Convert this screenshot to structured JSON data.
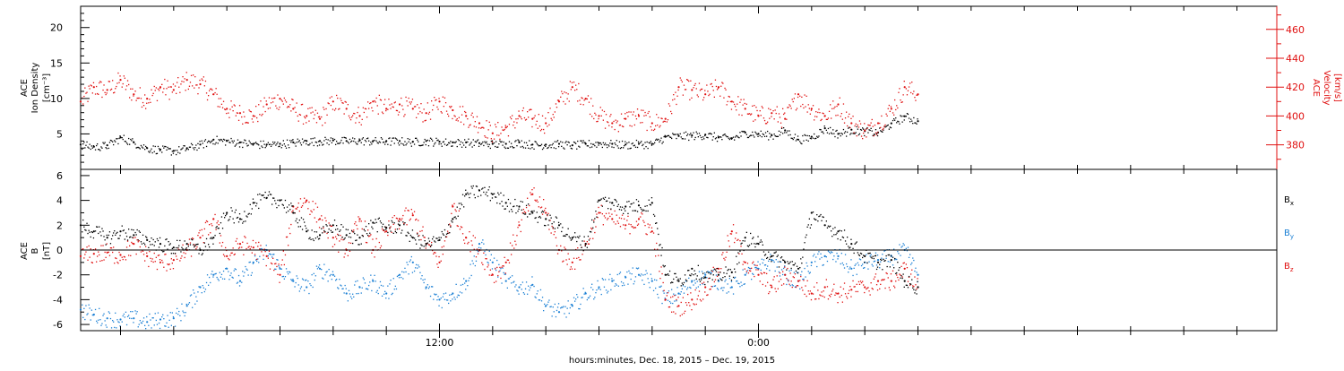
{
  "chart_data": [
    {
      "type": "scatter",
      "panel": "top",
      "ylabel_left": [
        "ACE",
        "Ion Density",
        "[cm⁻³]"
      ],
      "ylabel_right": [
        "ACE",
        "Velocity",
        "[km/s]"
      ],
      "ylim_left": [
        0,
        23
      ],
      "yticks_left": [
        5,
        10,
        15,
        20
      ],
      "ylim_right": [
        363,
        476
      ],
      "yticks_right": [
        380,
        400,
        420,
        440,
        460
      ],
      "colors": {
        "density": "#000000",
        "velocity": "#e01010"
      },
      "series": [
        {
          "axis": "left",
          "x_hours": [
            -1.5,
            -1,
            -0.5,
            0,
            0.5,
            1,
            1.5,
            2,
            2.5,
            3,
            3.5,
            4,
            4.5,
            5,
            5.5,
            6,
            6.5,
            7,
            7.5,
            8,
            8.5,
            9,
            9.5,
            10,
            10.5,
            11,
            11.5,
            12,
            12.5,
            13,
            13.5,
            14,
            14.5,
            15,
            15.5,
            16,
            16.5,
            17,
            17.5,
            18,
            18.5,
            19,
            19.5,
            20,
            20.5,
            21,
            21.5,
            22,
            22.5,
            23,
            23.5,
            24,
            24.5,
            25,
            25.5,
            26,
            26.5,
            27,
            27.5,
            28,
            28.5,
            29,
            29.5,
            30
          ],
          "values": [
            3.5,
            3.2,
            3.4,
            4.5,
            3.8,
            3.0,
            2.8,
            2.6,
            3.0,
            3.5,
            4.2,
            4.0,
            3.8,
            3.6,
            3.5,
            3.6,
            3.8,
            4.0,
            4.0,
            4.1,
            4.0,
            4.1,
            4.0,
            4.0,
            4.0,
            3.9,
            4.0,
            3.9,
            3.8,
            3.8,
            3.7,
            3.6,
            3.6,
            3.8,
            3.5,
            3.5,
            3.6,
            3.4,
            3.6,
            3.7,
            3.6,
            3.5,
            3.6,
            3.6,
            4.6,
            4.7,
            4.8,
            4.9,
            4.5,
            4.4,
            5.2,
            5.0,
            4.8,
            5.5,
            4.2,
            4.6,
            5.8,
            5.0,
            5.6,
            5.4,
            5.2,
            6.5,
            7.5,
            6.8
          ]
        },
        {
          "axis": "right",
          "x_hours": [
            -1.5,
            -1,
            -0.5,
            0,
            0.5,
            1,
            1.5,
            2,
            2.5,
            3,
            3.5,
            4,
            4.5,
            5,
            5.5,
            6,
            6.5,
            7,
            7.5,
            8,
            8.5,
            9,
            9.5,
            10,
            10.5,
            11,
            11.5,
            12,
            12.5,
            13,
            13.5,
            14,
            14.5,
            15,
            15.5,
            16,
            16.5,
            17,
            17.5,
            18,
            18.5,
            19,
            19.5,
            20,
            20.5,
            21,
            21.5,
            22,
            22.5,
            23,
            23.5,
            24,
            24.5,
            25,
            25.5,
            26,
            26.5,
            27,
            27.5,
            28,
            28.5,
            29,
            29.5,
            30
          ],
          "values": [
            410,
            420,
            418,
            425,
            415,
            412,
            420,
            418,
            425,
            422,
            415,
            405,
            402,
            400,
            408,
            412,
            405,
            400,
            398,
            410,
            405,
            400,
            410,
            405,
            408,
            405,
            402,
            410,
            404,
            400,
            395,
            388,
            392,
            400,
            398,
            395,
            410,
            420,
            412,
            400,
            395,
            398,
            400,
            395,
            398,
            420,
            418,
            415,
            420,
            410,
            405,
            400,
            402,
            398,
            415,
            405,
            400,
            408,
            395,
            390,
            395,
            405,
            420,
            415
          ]
        }
      ]
    },
    {
      "type": "scatter",
      "panel": "bottom",
      "ylabel_left": [
        "ACE",
        "B",
        "[nT]"
      ],
      "ylim": [
        -6.5,
        6.5
      ],
      "yticks": [
        -6,
        -4,
        -2,
        0,
        2,
        4,
        6
      ],
      "colors": {
        "bx": "#000000",
        "by": "#1a7fd4",
        "bz": "#e01010"
      },
      "legend": [
        "Bx",
        "By",
        "Bz"
      ],
      "series": [
        {
          "name": "Bx",
          "x_hours": [
            -1.5,
            -1,
            -0.5,
            0,
            0.5,
            1,
            1.5,
            2,
            2.5,
            3,
            3.5,
            4,
            4.5,
            5,
            5.5,
            6,
            6.5,
            7,
            7.5,
            8,
            8.5,
            9,
            9.5,
            10,
            10.5,
            11,
            11.5,
            12,
            12.5,
            13,
            13.5,
            14,
            14.5,
            15,
            15.5,
            16,
            16.5,
            17,
            17.5,
            18,
            18.5,
            19,
            19.5,
            20,
            20.5,
            21,
            21.5,
            22,
            22.5,
            23,
            23.5,
            24,
            24.5,
            25,
            25.5,
            26,
            26.5,
            27,
            27.5,
            28,
            28.5,
            29,
            29.5,
            30
          ],
          "values": [
            2.0,
            1.5,
            1.0,
            1.5,
            1.2,
            0.8,
            0.5,
            0.2,
            0.5,
            0.0,
            1.0,
            3.0,
            2.5,
            3.8,
            4.2,
            4.0,
            3.0,
            1.5,
            1.2,
            2.0,
            1.2,
            1.0,
            2.2,
            1.8,
            2.0,
            1.0,
            0.5,
            0.8,
            2.5,
            4.5,
            4.8,
            4.5,
            3.8,
            3.5,
            3.0,
            2.5,
            2.0,
            1.0,
            0.5,
            4.0,
            3.8,
            3.5,
            3.6,
            3.8,
            -2.0,
            -2.5,
            -1.5,
            -2.2,
            -2.0,
            -1.8,
            1.0,
            0.5,
            -0.5,
            -1.0,
            -1.5,
            3.0,
            2.0,
            1.5,
            0.5,
            -0.5,
            -1.0,
            -0.8,
            -2.5,
            -3.0
          ]
        },
        {
          "name": "By",
          "x_hours": [
            -1.5,
            -1,
            -0.5,
            0,
            0.5,
            1,
            1.5,
            2,
            2.5,
            3,
            3.5,
            4,
            4.5,
            5,
            5.5,
            6,
            6.5,
            7,
            7.5,
            8,
            8.5,
            9,
            9.5,
            10,
            10.5,
            11,
            11.5,
            12,
            12.5,
            13,
            13.5,
            14,
            14.5,
            15,
            15.5,
            16,
            16.5,
            17,
            17.5,
            18,
            18.5,
            19,
            19.5,
            20,
            20.5,
            21,
            21.5,
            22,
            22.5,
            23,
            23.5,
            24,
            24.5,
            25,
            25.5,
            26,
            26.5,
            27,
            27.5,
            28,
            28.5,
            29,
            29.5,
            30
          ],
          "values": [
            -4.8,
            -5.2,
            -5.5,
            -5.6,
            -5.5,
            -5.8,
            -5.6,
            -5.5,
            -4.5,
            -3.0,
            -2.0,
            -1.5,
            -2.5,
            -1.0,
            0.0,
            -1.5,
            -2.5,
            -3.0,
            -1.5,
            -2.0,
            -3.5,
            -3.0,
            -2.5,
            -3.5,
            -2.0,
            -1.0,
            -3.0,
            -4.0,
            -3.5,
            -2.5,
            0.5,
            -1.0,
            -2.5,
            -3.0,
            -2.8,
            -4.5,
            -5.0,
            -4.5,
            -3.5,
            -3.0,
            -2.5,
            -2.2,
            -2.0,
            -2.5,
            -4.0,
            -3.5,
            -2.5,
            -2.0,
            -2.5,
            -3.0,
            -2.0,
            -1.5,
            -0.8,
            -2.0,
            -2.5,
            -1.0,
            -0.5,
            -0.5,
            -1.5,
            -1.0,
            -0.8,
            -0.5,
            0.0,
            -2.0
          ]
        },
        {
          "name": "Bz",
          "x_hours": [
            -1.5,
            -1,
            -0.5,
            0,
            0.5,
            1,
            1.5,
            2,
            2.5,
            3,
            3.5,
            4,
            4.5,
            5,
            5.5,
            6,
            6.5,
            7,
            7.5,
            8,
            8.5,
            9,
            9.5,
            10,
            10.5,
            11,
            11.5,
            12,
            12.5,
            13,
            13.5,
            14,
            14.5,
            15,
            15.5,
            16,
            16.5,
            17,
            17.5,
            18,
            18.5,
            19,
            19.5,
            20,
            20.5,
            21,
            21.5,
            22,
            22.5,
            23,
            23.5,
            24,
            24.5,
            25,
            25.5,
            26,
            26.5,
            27,
            27.5,
            28,
            28.5,
            29,
            29.5,
            30
          ],
          "values": [
            -0.5,
            -0.3,
            -0.2,
            -0.4,
            0.5,
            -0.5,
            -1.0,
            -0.8,
            0.0,
            1.0,
            2.5,
            -0.5,
            0.5,
            0.2,
            -0.5,
            -2.0,
            3.5,
            4.0,
            2.5,
            1.0,
            0.0,
            2.5,
            0.0,
            1.5,
            2.5,
            2.8,
            0.5,
            -1.0,
            3.5,
            1.0,
            0.0,
            -2.0,
            -1.0,
            2.0,
            4.5,
            3.0,
            0.0,
            -1.0,
            0.5,
            3.0,
            2.5,
            2.0,
            2.5,
            1.5,
            -4.0,
            -4.5,
            -4.0,
            -3.0,
            -1.5,
            1.5,
            -1.0,
            -2.0,
            -3.0,
            -2.0,
            -2.5,
            -3.5,
            -3.0,
            -3.5,
            -3.2,
            -3.0,
            -2.5,
            -2.5,
            -1.5,
            -3.0
          ]
        }
      ],
      "legend_labels": {
        "bx": "B",
        "bx_sub": "x",
        "by": "B",
        "by_sub": "y",
        "bz": "B",
        "bz_sub": "z"
      }
    }
  ],
  "xaxis": {
    "tick_labels": [
      "12:00",
      "0:00"
    ],
    "tick_hours": [
      12,
      24
    ],
    "xlim_hours": [
      -1.5,
      43.5
    ],
    "minor_tick_step_hours": 2,
    "xlabel": "hours:minutes, Dec. 18, 2015 – Dec. 19, 2015"
  }
}
